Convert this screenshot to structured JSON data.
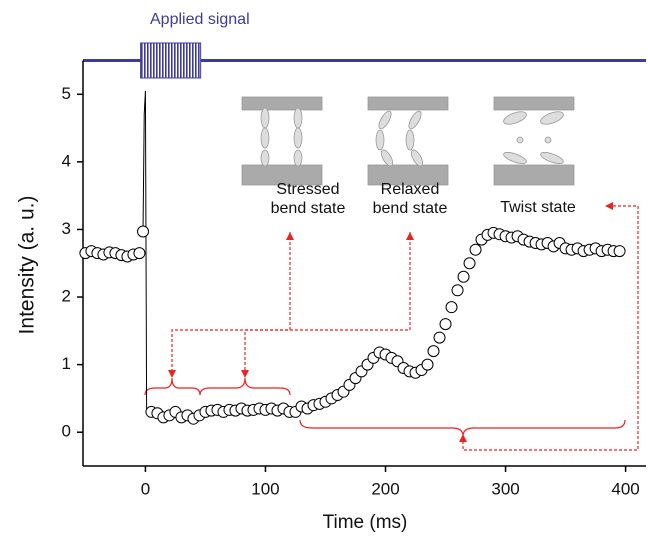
{
  "chart_data": {
    "type": "scatter",
    "xlabel": "Time (ms)",
    "ylabel": "Intensity (a. u.)",
    "xlim": [
      -52,
      417
    ],
    "ylim": [
      -0.5,
      5.5
    ],
    "xticks": [
      0,
      100,
      200,
      300,
      400
    ],
    "yticks": [
      0,
      1,
      2,
      3,
      4,
      5
    ],
    "signal": {
      "label": "Applied signal",
      "pulse": [
        -4,
        46
      ],
      "color": "#3c3c9c"
    },
    "states": [
      "Stressed\nbend state",
      "Relaxed\nbend state",
      "Twist state"
    ],
    "series": [
      {
        "x": [
          -50,
          -45,
          -40,
          -35,
          -30,
          -25,
          -20,
          -15,
          -10,
          -5,
          -2,
          5,
          10,
          15,
          20,
          25,
          30,
          35,
          40,
          45,
          50,
          55,
          60,
          65,
          70,
          75,
          80,
          85,
          90,
          95,
          100,
          105,
          110,
          115,
          120,
          125,
          130,
          135,
          140,
          145,
          150,
          155,
          160,
          165,
          170,
          175,
          180,
          185,
          190,
          195,
          200,
          205,
          210,
          215,
          220,
          225,
          230,
          235,
          240,
          245,
          250,
          255,
          260,
          265,
          270,
          275,
          280,
          285,
          290,
          295,
          300,
          305,
          310,
          315,
          320,
          325,
          330,
          335,
          340,
          345,
          350,
          355,
          360,
          365,
          370,
          375,
          380,
          385,
          390,
          395
        ],
        "values": [
          2.65,
          2.68,
          2.65,
          2.63,
          2.66,
          2.65,
          2.62,
          2.6,
          2.63,
          2.65,
          2.97,
          0.3,
          0.28,
          0.22,
          0.25,
          0.3,
          0.22,
          0.25,
          0.2,
          0.25,
          0.3,
          0.32,
          0.33,
          0.3,
          0.33,
          0.32,
          0.35,
          0.32,
          0.33,
          0.35,
          0.33,
          0.35,
          0.32,
          0.35,
          0.3,
          0.3,
          0.38,
          0.35,
          0.4,
          0.42,
          0.45,
          0.5,
          0.55,
          0.6,
          0.7,
          0.8,
          0.9,
          1.0,
          1.1,
          1.18,
          1.15,
          1.1,
          1.05,
          0.95,
          0.9,
          0.88,
          0.92,
          1.0,
          1.2,
          1.4,
          1.6,
          1.85,
          2.1,
          2.3,
          2.5,
          2.7,
          2.85,
          2.92,
          2.95,
          2.93,
          2.9,
          2.88,
          2.9,
          2.85,
          2.82,
          2.8,
          2.78,
          2.8,
          2.75,
          2.8,
          2.72,
          2.7,
          2.72,
          2.68,
          2.7,
          2.72,
          2.68,
          2.7,
          2.68,
          2.68
        ],
        "color": "#000000"
      },
      {
        "x": [
          -2,
          -1,
          0,
          1,
          3
        ],
        "values": [
          2.97,
          4.7,
          5.05,
          0.3,
          0.3
        ],
        "color": "#000000"
      }
    ]
  }
}
